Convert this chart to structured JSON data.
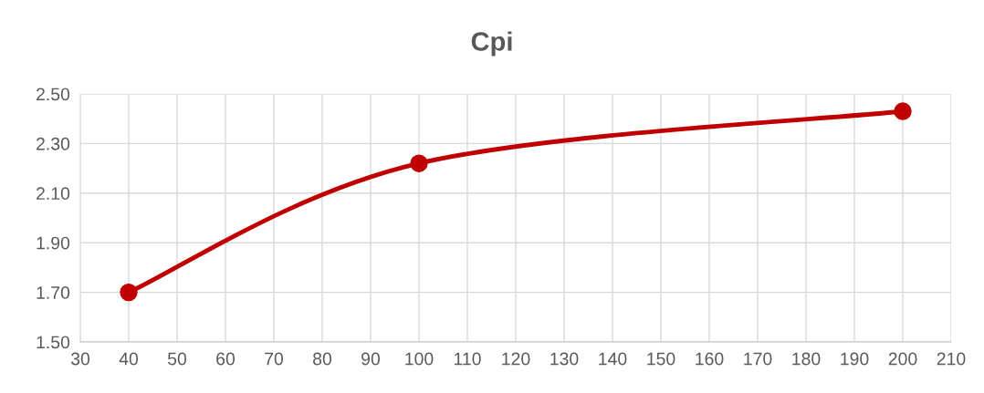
{
  "chart_data": {
    "type": "line",
    "title": "Cpi",
    "x": [
      40,
      100,
      200
    ],
    "series": [
      {
        "color": "#c00000",
        "values": [
          1.7,
          2.22,
          2.43
        ]
      }
    ],
    "xlim": [
      30,
      210
    ],
    "xticks": [
      30,
      40,
      50,
      60,
      70,
      80,
      90,
      100,
      110,
      120,
      130,
      140,
      150,
      160,
      170,
      180,
      190,
      200,
      210
    ],
    "ylim": [
      1.5,
      2.5
    ],
    "yticks": [
      {
        "value": 1.5,
        "label": "1.50"
      },
      {
        "value": 1.7,
        "label": "1.70"
      },
      {
        "value": 1.9,
        "label": "1.90"
      },
      {
        "value": 2.1,
        "label": "2.10"
      },
      {
        "value": 2.3,
        "label": "2.30"
      },
      {
        "value": 2.5,
        "label": "2.50"
      }
    ],
    "grid": true,
    "marker": "circle",
    "line_style": "solid"
  }
}
